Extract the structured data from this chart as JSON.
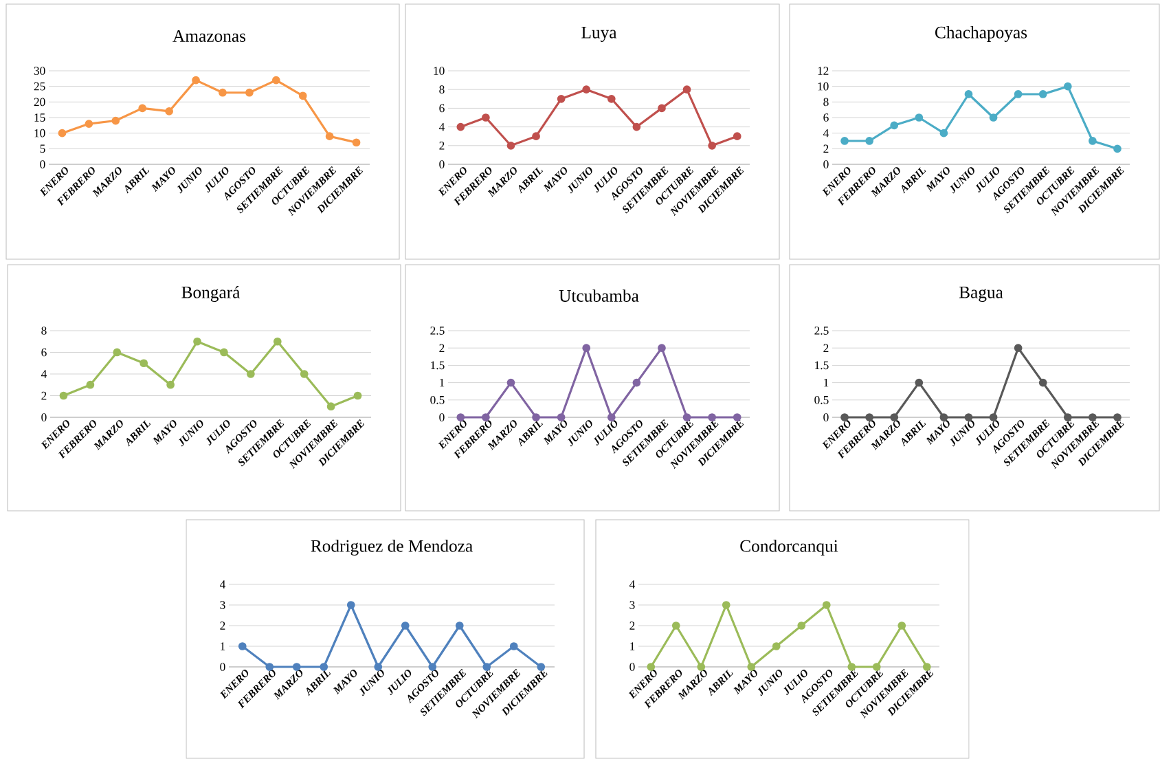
{
  "chart_data": [
    {
      "type": "line",
      "title": "Amazonas",
      "categories": [
        "ENERO",
        "FEBRERO",
        "MARZO",
        "ABRIL",
        "MAYO",
        "JUNIO",
        "JULIO",
        "AGOSTO",
        "SETIEMBRE",
        "OCTUBRE",
        "NOVIEMBRE",
        "DICIEMBRE"
      ],
      "series": [
        {
          "color": "#f79646",
          "values": [
            10,
            13,
            14,
            18,
            17,
            27,
            23,
            23,
            27,
            22,
            9,
            7
          ]
        }
      ],
      "ylim": [
        0,
        30
      ],
      "yticks": [
        0,
        5,
        10,
        15,
        20,
        25,
        30
      ],
      "grid": "y",
      "marker": "circle",
      "line_style": "solid"
    },
    {
      "type": "line",
      "title": "Luya",
      "categories": [
        "ENERO",
        "FEBRERO",
        "MARZO",
        "ABRIL",
        "MAYO",
        "JUNIO",
        "JULIO",
        "AGOSTO",
        "SETIEMBRE",
        "OCTUBRE",
        "NOVIEMBRE",
        "DICIEMBRE"
      ],
      "series": [
        {
          "color": "#c0504d",
          "values": [
            4,
            5,
            2,
            3,
            7,
            8,
            7,
            4,
            6,
            8,
            2,
            3
          ]
        }
      ],
      "ylim": [
        0,
        10
      ],
      "yticks": [
        0,
        2,
        4,
        6,
        8,
        10
      ],
      "grid": "y",
      "marker": "circle",
      "line_style": "solid"
    },
    {
      "type": "line",
      "title": "Chachapoyas",
      "categories": [
        "ENERO",
        "FEBRERO",
        "MARZO",
        "ABRIL",
        "MAYO",
        "JUNIO",
        "JULIO",
        "AGOSTO",
        "SETIEMBRE",
        "OCTUBRE",
        "NOVIEMBRE",
        "DICIEMBRE"
      ],
      "series": [
        {
          "color": "#4bacc6",
          "values": [
            3,
            3,
            5,
            6,
            4,
            9,
            6,
            9,
            9,
            10,
            3,
            2
          ]
        }
      ],
      "ylim": [
        0,
        12
      ],
      "yticks": [
        0,
        2,
        4,
        6,
        8,
        10,
        12
      ],
      "grid": "y",
      "marker": "circle",
      "line_style": "solid"
    },
    {
      "type": "line",
      "title": "Bongará",
      "categories": [
        "ENERO",
        "FEBRERO",
        "MARZO",
        "ABRIL",
        "MAYO",
        "JUNIO",
        "JULIO",
        "AGOSTO",
        "SETIEMBRE",
        "OCTUBRE",
        "NOVIEMBRE",
        "DICIEMBRE"
      ],
      "series": [
        {
          "color": "#9bbb59",
          "values": [
            2,
            3,
            6,
            5,
            3,
            7,
            6,
            4,
            7,
            4,
            1,
            2
          ]
        }
      ],
      "ylim": [
        0,
        8
      ],
      "yticks": [
        0,
        2,
        4,
        6,
        8
      ],
      "grid": "y",
      "marker": "circle",
      "line_style": "solid"
    },
    {
      "type": "line",
      "title": "Utcubamba",
      "categories": [
        "ENERO",
        "FEBRERO",
        "MARZO",
        "ABRIL",
        "MAYO",
        "JUNIO",
        "JULIO",
        "AGOSTO",
        "SETIEMBRE",
        "OCTUBRE",
        "NOVIEMBRE",
        "DICIEMBRE"
      ],
      "series": [
        {
          "color": "#8064a2",
          "values": [
            0,
            0,
            1,
            0,
            0,
            2,
            0,
            1,
            2,
            0,
            0,
            0
          ]
        }
      ],
      "ylim": [
        0,
        2.5
      ],
      "yticks": [
        0,
        0.5,
        1,
        1.5,
        2,
        2.5
      ],
      "grid": "y",
      "marker": "circle",
      "line_style": "solid"
    },
    {
      "type": "line",
      "title": "Bagua",
      "categories": [
        "ENERO",
        "FEBRERO",
        "MARZO",
        "ABRIL",
        "MAYO",
        "JUNIO",
        "JULIO",
        "AGOSTO",
        "SETIEMBRE",
        "OCTUBRE",
        "NOVIEMBRE",
        "DICIEMBRE"
      ],
      "series": [
        {
          "color": "#595959",
          "values": [
            0,
            0,
            0,
            1,
            0,
            0,
            0,
            2,
            1,
            0,
            0,
            0
          ]
        }
      ],
      "ylim": [
        0,
        2.5
      ],
      "yticks": [
        0,
        0.5,
        1,
        1.5,
        2,
        2.5
      ],
      "grid": "y",
      "marker": "circle",
      "line_style": "solid"
    },
    {
      "type": "line",
      "title": "Rodriguez de Mendoza",
      "categories": [
        "ENERO",
        "FEBRERO",
        "MARZO",
        "ABRIL",
        "MAYO",
        "JUNIO",
        "JULIO",
        "AGOSTO",
        "SETIEMBRE",
        "OCTUBRE",
        "NOVIEMBRE",
        "DICIEMBRE"
      ],
      "series": [
        {
          "color": "#4f81bd",
          "values": [
            1,
            0,
            0,
            0,
            3,
            0,
            2,
            0,
            2,
            0,
            1,
            0
          ]
        }
      ],
      "ylim": [
        0,
        4
      ],
      "yticks": [
        0,
        1,
        2,
        3,
        4
      ],
      "grid": "y",
      "marker": "circle",
      "line_style": "solid"
    },
    {
      "type": "line",
      "title": "Condorcanqui",
      "categories": [
        "ENERO",
        "FEBRERO",
        "MARZO",
        "ABRIL",
        "MAYO",
        "JUNIO",
        "JULIO",
        "AGOSTO",
        "SETIEMBRE",
        "OCTUBRE",
        "NOVIEMBRE",
        "DICIEMBRE"
      ],
      "series": [
        {
          "color": "#9bbb59",
          "values": [
            0,
            2,
            0,
            3,
            0,
            1,
            2,
            3,
            0,
            0,
            2,
            0
          ]
        }
      ],
      "ylim": [
        0,
        4
      ],
      "yticks": [
        0,
        1,
        2,
        3,
        4
      ],
      "grid": "y",
      "marker": "circle",
      "line_style": "solid"
    }
  ]
}
